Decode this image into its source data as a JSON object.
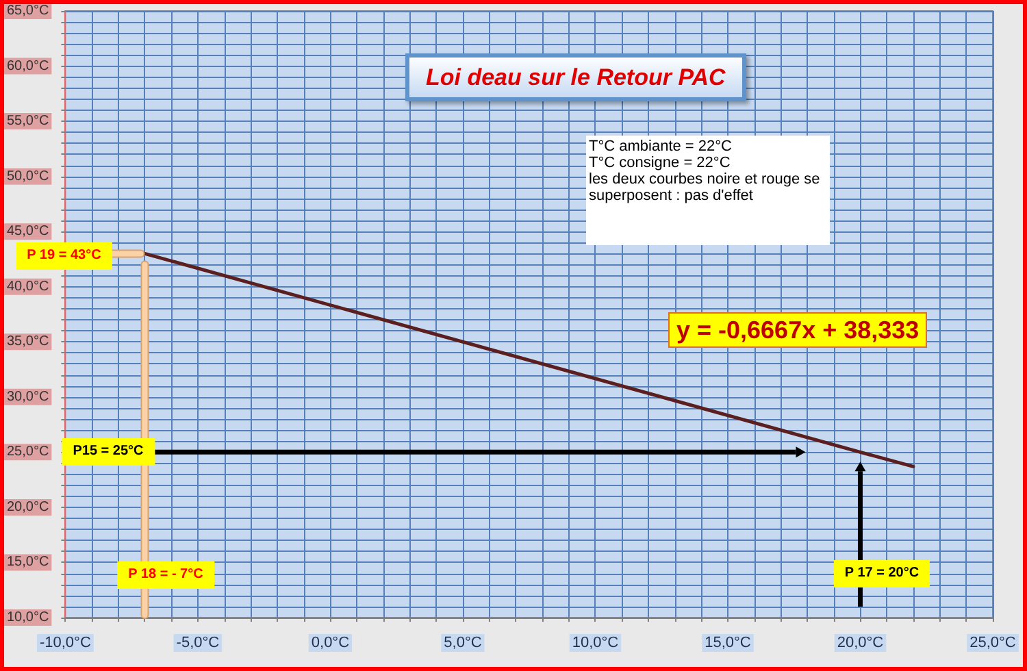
{
  "chart_data": {
    "type": "line",
    "title": "Loi deau sur le Retour PAC",
    "x": [
      -7,
      20,
      22
    ],
    "series": [
      {
        "color": "#5b1f1f",
        "values": [
          43,
          25,
          23.7
        ]
      }
    ],
    "xlim": [
      -10,
      25
    ],
    "xticks": [
      {
        "value": -10,
        "label": "-10,0°C"
      },
      {
        "value": -9,
        "label": null
      },
      {
        "value": -8,
        "label": null
      },
      {
        "value": -7,
        "label": null
      },
      {
        "value": -6,
        "label": null
      },
      {
        "value": -5,
        "label": "-5,0°C"
      },
      {
        "value": -4,
        "label": null
      },
      {
        "value": -3,
        "label": null
      },
      {
        "value": -2,
        "label": null
      },
      {
        "value": -1,
        "label": null
      },
      {
        "value": 0,
        "label": "0,0°C"
      },
      {
        "value": 1,
        "label": null
      },
      {
        "value": 2,
        "label": null
      },
      {
        "value": 3,
        "label": null
      },
      {
        "value": 4,
        "label": null
      },
      {
        "value": 5,
        "label": "5,0°C"
      },
      {
        "value": 6,
        "label": null
      },
      {
        "value": 7,
        "label": null
      },
      {
        "value": 8,
        "label": null
      },
      {
        "value": 9,
        "label": null
      },
      {
        "value": 10,
        "label": "10,0°C"
      },
      {
        "value": 11,
        "label": null
      },
      {
        "value": 12,
        "label": null
      },
      {
        "value": 13,
        "label": null
      },
      {
        "value": 14,
        "label": null
      },
      {
        "value": 15,
        "label": "15,0°C"
      },
      {
        "value": 16,
        "label": null
      },
      {
        "value": 17,
        "label": null
      },
      {
        "value": 18,
        "label": null
      },
      {
        "value": 19,
        "label": null
      },
      {
        "value": 20,
        "label": "20,0°C"
      },
      {
        "value": 21,
        "label": null
      },
      {
        "value": 22,
        "label": null
      },
      {
        "value": 23,
        "label": null
      },
      {
        "value": 24,
        "label": null
      },
      {
        "value": 25,
        "label": "25,0°C"
      }
    ],
    "ylim": [
      10,
      65
    ],
    "yticks": [
      {
        "value": 10,
        "label": "10,0°C"
      },
      {
        "value": 11,
        "label": null
      },
      {
        "value": 12,
        "label": null
      },
      {
        "value": 13,
        "label": null
      },
      {
        "value": 14,
        "label": null
      },
      {
        "value": 15,
        "label": "15,0°C"
      },
      {
        "value": 16,
        "label": null
      },
      {
        "value": 17,
        "label": null
      },
      {
        "value": 18,
        "label": null
      },
      {
        "value": 19,
        "label": null
      },
      {
        "value": 20,
        "label": "20,0°C"
      },
      {
        "value": 21,
        "label": null
      },
      {
        "value": 22,
        "label": null
      },
      {
        "value": 23,
        "label": null
      },
      {
        "value": 24,
        "label": null
      },
      {
        "value": 25,
        "label": "25,0°C"
      },
      {
        "value": 26,
        "label": null
      },
      {
        "value": 27,
        "label": null
      },
      {
        "value": 28,
        "label": null
      },
      {
        "value": 29,
        "label": null
      },
      {
        "value": 30,
        "label": "30,0°C"
      },
      {
        "value": 31,
        "label": null
      },
      {
        "value": 32,
        "label": null
      },
      {
        "value": 33,
        "label": null
      },
      {
        "value": 34,
        "label": null
      },
      {
        "value": 35,
        "label": "35,0°C"
      },
      {
        "value": 36,
        "label": null
      },
      {
        "value": 37,
        "label": null
      },
      {
        "value": 38,
        "label": null
      },
      {
        "value": 39,
        "label": null
      },
      {
        "value": 40,
        "label": "40,0°C"
      },
      {
        "value": 41,
        "label": null
      },
      {
        "value": 42,
        "label": null
      },
      {
        "value": 43,
        "label": null
      },
      {
        "value": 44,
        "label": null
      },
      {
        "value": 45,
        "label": "45,0°C"
      },
      {
        "value": 46,
        "label": null
      },
      {
        "value": 47,
        "label": null
      },
      {
        "value": 48,
        "label": null
      },
      {
        "value": 49,
        "label": null
      },
      {
        "value": 50,
        "label": "50,0°C"
      },
      {
        "value": 51,
        "label": null
      },
      {
        "value": 52,
        "label": null
      },
      {
        "value": 53,
        "label": null
      },
      {
        "value": 54,
        "label": null
      },
      {
        "value": 55,
        "label": "55,0°C"
      },
      {
        "value": 56,
        "label": null
      },
      {
        "value": 57,
        "label": null
      },
      {
        "value": 58,
        "label": null
      },
      {
        "value": 59,
        "label": null
      },
      {
        "value": 60,
        "label": "60,0°C"
      },
      {
        "value": 61,
        "label": null
      },
      {
        "value": 62,
        "label": null
      },
      {
        "value": 63,
        "label": null
      },
      {
        "value": 64,
        "label": null
      },
      {
        "value": 65,
        "label": "65,0°C"
      }
    ],
    "grid": true,
    "marker": "none",
    "annotations": [
      "T°C ambiante = 22°C\nT°C consigne = 22°C\nles deux courbes noire et rouge se superposent : pas d'effet",
      "y = -0,6667x + 38,333",
      {
        "text": "P 19 = 43°C",
        "x": -7,
        "y": 43
      },
      "P15 = 25°C",
      "P 18 = - 7°C",
      "P 17 = 20°C"
    ]
  }
}
